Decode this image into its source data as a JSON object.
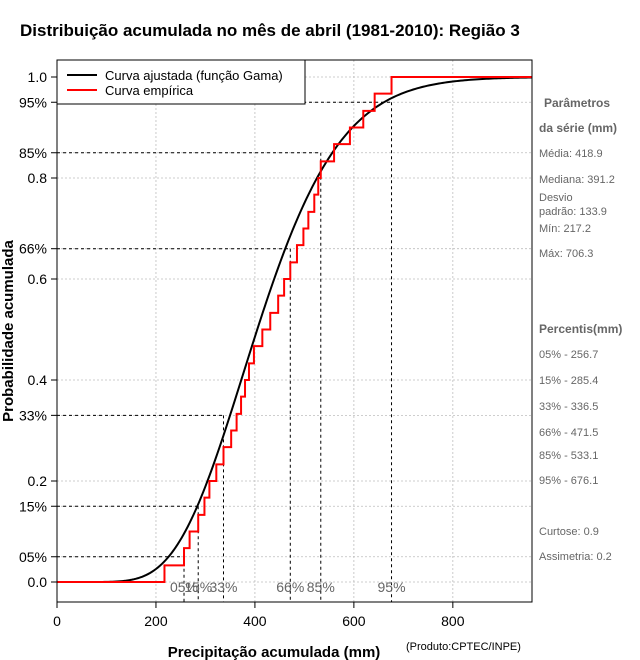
{
  "chart_data": {
    "type": "line",
    "title": "Distribuição acumulada no mês de abril (1981-2010): Região 3",
    "xlabel": "Precipitação acumulada (mm)",
    "ylabel": "Probabilidade acumulada",
    "credit": "(Produto:CPTEC/INPE)",
    "xlim": [
      0,
      960
    ],
    "ylim": [
      0,
      1
    ],
    "x_ticks": [
      "0",
      "200",
      "400",
      "600",
      "800"
    ],
    "y_ticks": [
      {
        "value": 1.0,
        "label": "1.0"
      },
      {
        "value": 0.95,
        "label": "95%"
      },
      {
        "value": 0.85,
        "label": "85%"
      },
      {
        "value": 0.8,
        "label": "0.8"
      },
      {
        "value": 0.66,
        "label": "66%"
      },
      {
        "value": 0.6,
        "label": "0.6"
      },
      {
        "value": 0.4,
        "label": "0.4"
      },
      {
        "value": 0.33,
        "label": "33%"
      },
      {
        "value": 0.2,
        "label": "0.2"
      },
      {
        "value": 0.15,
        "label": "15%"
      },
      {
        "value": 0.05,
        "label": "05%"
      },
      {
        "value": 0.0,
        "label": "0.0"
      }
    ],
    "legend": {
      "placement": "top-left",
      "entries": [
        {
          "label": "Curva ajustada (função Gama)",
          "color": "#000000"
        },
        {
          "label": "Curva empírica",
          "color": "#ff0000"
        }
      ]
    },
    "series": [
      {
        "name": "Curva ajustada (função Gama)",
        "color": "#000000",
        "distribution": "gamma",
        "mean": 418.9,
        "sd": 133.9
      },
      {
        "name": "Curva empírica",
        "color": "#ff0000",
        "step": true,
        "x": [
          217.2,
          256.7,
          268,
          285.4,
          298,
          308,
          322,
          336.5,
          352,
          363,
          372,
          380,
          388,
          398,
          415,
          431,
          447,
          459,
          471.5,
          485,
          498,
          508,
          520,
          528,
          533.1,
          560,
          592,
          619,
          642,
          676.1,
          706.3
        ],
        "y": [
          0.033,
          0.067,
          0.1,
          0.133,
          0.167,
          0.2,
          0.233,
          0.267,
          0.3,
          0.333,
          0.367,
          0.4,
          0.433,
          0.467,
          0.5,
          0.533,
          0.567,
          0.6,
          0.633,
          0.667,
          0.7,
          0.733,
          0.767,
          0.8,
          0.833,
          0.867,
          0.9,
          0.933,
          0.967,
          1.0,
          1.0
        ]
      }
    ],
    "percentile_markers": [
      {
        "label": "05%",
        "p": 0.05,
        "x": 256.7
      },
      {
        "label": "15%",
        "p": 0.15,
        "x": 285.4
      },
      {
        "label": "33%",
        "p": 0.33,
        "x": 336.5
      },
      {
        "label": "66%",
        "p": 0.66,
        "x": 471.5
      },
      {
        "label": "85%",
        "p": 0.85,
        "x": 533.1
      },
      {
        "label": "95%",
        "p": 0.95,
        "x": 676.1
      }
    ]
  },
  "side_panel": {
    "params_title_line1": "Parâmetros",
    "params_title_line2": "da série (mm)",
    "mean": "Média: 418.9",
    "median": "Mediana: 391.2",
    "sd_line1": "Desvio",
    "sd_line2": "padrão: 133.9",
    "min": "Mín: 217.2",
    "max": "Máx: 706.3",
    "percentiles_title": "Percentis(mm)",
    "p05": "05% - 256.7",
    "p15": "15% - 285.4",
    "p33": "33% - 336.5",
    "p66": "66% - 471.5",
    "p85": "85% - 533.1",
    "p95": "95% - 676.1",
    "kurtosis": "Curtose: 0.9",
    "skewness": "Assimetria: 0.2"
  }
}
